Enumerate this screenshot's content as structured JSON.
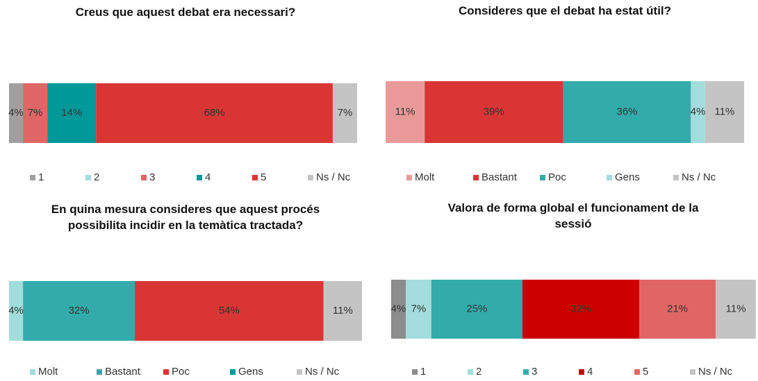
{
  "chart_data": [
    {
      "type": "stacked-bar",
      "title": "Creus que aquest debat era necessari?",
      "series": [
        {
          "name": "1",
          "color": "#a0a0a0",
          "values": [
            4
          ],
          "value_labels": [
            "4%"
          ]
        },
        {
          "name": "2",
          "color": "#a3dcdc",
          "values": [
            0
          ]
        },
        {
          "name": "3",
          "color": "#e06666",
          "values": [
            7
          ],
          "value_labels": [
            "7%"
          ]
        },
        {
          "name": "4",
          "color": "#009999",
          "values": [
            14
          ],
          "value_labels": [
            "14%"
          ]
        },
        {
          "name": "5",
          "color": "#d93535",
          "values": [
            68
          ],
          "value_labels": [
            "68%"
          ]
        },
        {
          "name": "Ns / Nc",
          "color": "#c4c4c4",
          "values": [
            7
          ],
          "value_labels": [
            "7%"
          ]
        }
      ]
    },
    {
      "type": "stacked-bar",
      "title": "Consideres que el debat ha estat útil?",
      "series": [
        {
          "name": "Molt",
          "color": "#ea9999",
          "values": [
            11
          ],
          "value_labels": [
            "11%"
          ]
        },
        {
          "name": "Bastant",
          "color": "#d93535",
          "values": [
            39
          ],
          "value_labels": [
            "39%"
          ]
        },
        {
          "name": "Poc",
          "color": "#33abab",
          "values": [
            36
          ],
          "value_labels": [
            "36%"
          ]
        },
        {
          "name": "Gens",
          "color": "#a3dcdc",
          "values": [
            4
          ],
          "value_labels": [
            "4%"
          ]
        },
        {
          "name": "Ns / Nc",
          "color": "#c4c4c4",
          "values": [
            11
          ],
          "value_labels": [
            "11%"
          ]
        }
      ]
    },
    {
      "type": "stacked-bar",
      "title": "En quina mesura consideres que aquest procés possibilita incidir en la temàtica tractada?",
      "series": [
        {
          "name": "Molt",
          "color": "#a3dcdc",
          "values": [
            4
          ],
          "value_labels": [
            "4%"
          ]
        },
        {
          "name": "Bastant",
          "color": "#33abab",
          "values": [
            32
          ],
          "value_labels": [
            "32%"
          ]
        },
        {
          "name": "Poc",
          "color": "#d93535",
          "values": [
            54
          ],
          "value_labels": [
            "54%"
          ]
        },
        {
          "name": "Gens",
          "color": "#009999",
          "values": [
            0
          ]
        },
        {
          "name": "Ns / Nc",
          "color": "#c4c4c4",
          "values": [
            11
          ],
          "value_labels": [
            "11%"
          ]
        }
      ]
    },
    {
      "type": "stacked-bar",
      "title": "Valora de forma global el funcionament de la sessió",
      "series": [
        {
          "name": "1",
          "color": "#8c8c8c",
          "values": [
            4
          ],
          "value_labels": [
            "4%"
          ]
        },
        {
          "name": "2",
          "color": "#a3dcdc",
          "values": [
            7
          ],
          "value_labels": [
            "7%"
          ]
        },
        {
          "name": "3",
          "color": "#33abab",
          "values": [
            25
          ],
          "value_labels": [
            "25%"
          ]
        },
        {
          "name": "4",
          "color": "#cc0000",
          "values": [
            32
          ],
          "value_labels": [
            "32%"
          ]
        },
        {
          "name": "5",
          "color": "#e06666",
          "values": [
            21
          ],
          "value_labels": [
            "21%"
          ]
        },
        {
          "name": "Ns / Nc",
          "color": "#c4c4c4",
          "values": [
            11
          ],
          "value_labels": [
            "11%"
          ]
        }
      ]
    }
  ]
}
